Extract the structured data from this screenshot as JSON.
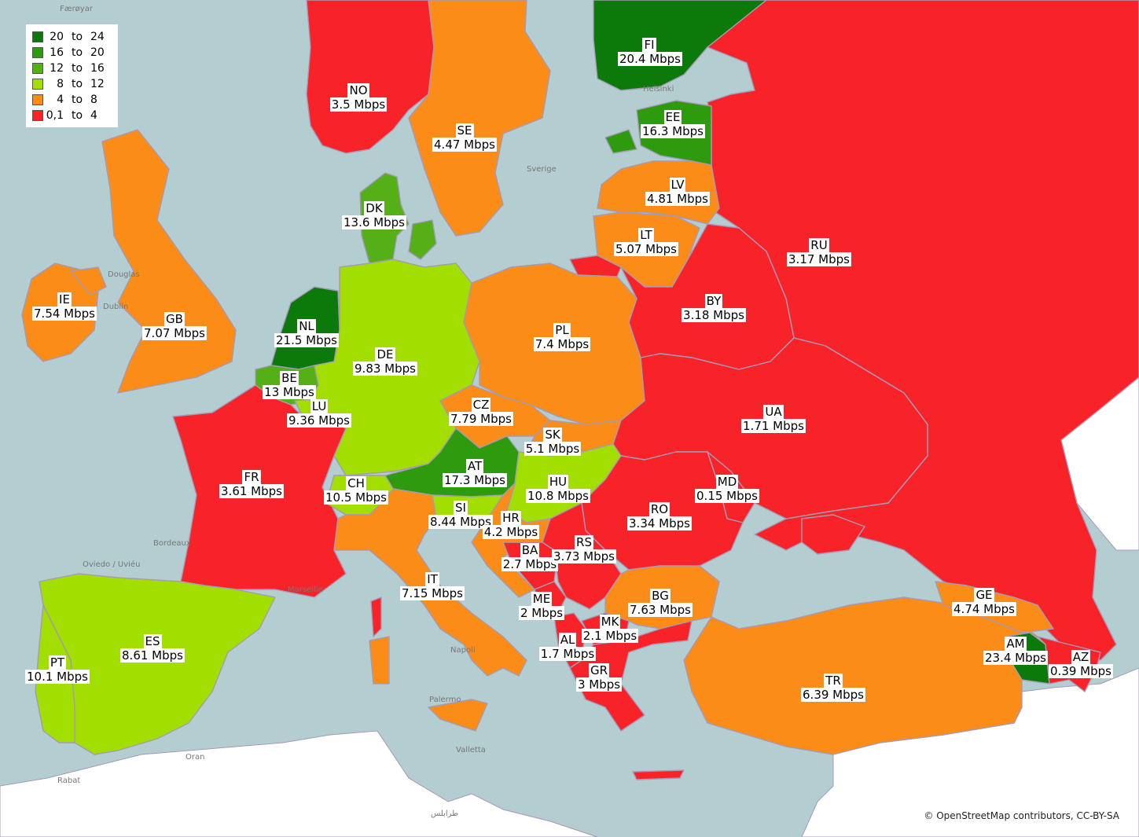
{
  "legend": {
    "items": [
      {
        "from": "20",
        "to": "24",
        "color": "#0b7a0b"
      },
      {
        "from": "16",
        "to": "20",
        "color": "#2e9a0e"
      },
      {
        "from": "12",
        "to": "16",
        "color": "#55b018"
      },
      {
        "from": "8",
        "to": "12",
        "color": "#a2de00"
      },
      {
        "from": "4",
        "to": "8",
        "color": "#fb8c18"
      },
      {
        "from": "0,1",
        "to": "4",
        "color": "#f82328"
      }
    ],
    "to_word": "to"
  },
  "countries": [
    {
      "code": "FI",
      "value": "20.4 Mbps",
      "color": "#0b7a0b"
    },
    {
      "code": "NO",
      "value": "3.5 Mbps",
      "color": "#f82328"
    },
    {
      "code": "SE",
      "value": "4.47 Mbps",
      "color": "#fb8c18"
    },
    {
      "code": "EE",
      "value": "16.3 Mbps",
      "color": "#2e9a0e"
    },
    {
      "code": "LV",
      "value": "4.81 Mbps",
      "color": "#fb8c18"
    },
    {
      "code": "LT",
      "value": "5.07 Mbps",
      "color": "#fb8c18"
    },
    {
      "code": "RU",
      "value": "3.17 Mbps",
      "color": "#f82328"
    },
    {
      "code": "DK",
      "value": "13.6 Mbps",
      "color": "#55b018"
    },
    {
      "code": "IE",
      "value": "7.54 Mbps",
      "color": "#fb8c18"
    },
    {
      "code": "GB",
      "value": "7.07 Mbps",
      "color": "#fb8c18"
    },
    {
      "code": "NL",
      "value": "21.5 Mbps",
      "color": "#0b7a0b"
    },
    {
      "code": "BY",
      "value": "3.18 Mbps",
      "color": "#f82328"
    },
    {
      "code": "PL",
      "value": "7.4 Mbps",
      "color": "#fb8c18"
    },
    {
      "code": "DE",
      "value": "9.83 Mbps",
      "color": "#a2de00"
    },
    {
      "code": "BE",
      "value": "13 Mbps",
      "color": "#55b018"
    },
    {
      "code": "LU",
      "value": "9.36 Mbps",
      "color": "#a2de00"
    },
    {
      "code": "CZ",
      "value": "7.79 Mbps",
      "color": "#fb8c18"
    },
    {
      "code": "UA",
      "value": "1.71 Mbps",
      "color": "#f82328"
    },
    {
      "code": "SK",
      "value": "5.1 Mbps",
      "color": "#fb8c18"
    },
    {
      "code": "AT",
      "value": "17.3 Mbps",
      "color": "#2e9a0e"
    },
    {
      "code": "FR",
      "value": "3.61 Mbps",
      "color": "#f82328"
    },
    {
      "code": "CH",
      "value": "10.5 Mbps",
      "color": "#a2de00"
    },
    {
      "code": "HU",
      "value": "10.8 Mbps",
      "color": "#a2de00"
    },
    {
      "code": "MD",
      "value": "0.15 Mbps",
      "color": "#f82328"
    },
    {
      "code": "SI",
      "value": "8.44 Mbps",
      "color": "#a2de00"
    },
    {
      "code": "HR",
      "value": "4.2 Mbps",
      "color": "#fb8c18"
    },
    {
      "code": "RO",
      "value": "3.34 Mbps",
      "color": "#f82328"
    },
    {
      "code": "BA",
      "value": "2.7 Mbps",
      "color": "#f82328"
    },
    {
      "code": "RS",
      "value": "3.73 Mbps",
      "color": "#f82328"
    },
    {
      "code": "IT",
      "value": "7.15 Mbps",
      "color": "#fb8c18"
    },
    {
      "code": "BG",
      "value": "7.63 Mbps",
      "color": "#fb8c18"
    },
    {
      "code": "GE",
      "value": "4.74 Mbps",
      "color": "#fb8c18"
    },
    {
      "code": "ME",
      "value": "2 Mbps",
      "color": "#f82328"
    },
    {
      "code": "MK",
      "value": "2.1 Mbps",
      "color": "#f82328"
    },
    {
      "code": "ES",
      "value": "8.61 Mbps",
      "color": "#a2de00"
    },
    {
      "code": "AL",
      "value": "1.7 Mbps",
      "color": "#f82328"
    },
    {
      "code": "AM",
      "value": "23.4 Mbps",
      "color": "#0b7a0b"
    },
    {
      "code": "AZ",
      "value": "0.39 Mbps",
      "color": "#f82328"
    },
    {
      "code": "PT",
      "value": "10.1 Mbps",
      "color": "#a2de00"
    },
    {
      "code": "GR",
      "value": "3 Mbps",
      "color": "#f82328"
    },
    {
      "code": "TR",
      "value": "6.39 Mbps",
      "color": "#fb8c18"
    }
  ],
  "basemap_labels": [
    "Færøyar",
    "Helsinki",
    "Sverige",
    "Douglas",
    "Dublin",
    "Bordeaux",
    "Oviedo / Uviéu",
    "Marseille",
    "Palermo",
    "Valletta",
    "Oran",
    "Rabat",
    "طرابلس",
    "Napoli"
  ],
  "credits": "© OpenStreetMap contributors, CC-BY-SA",
  "colors": {
    "sea": "#b3cdd1",
    "land_other": "#ffffff",
    "border": "#a59ab8"
  }
}
